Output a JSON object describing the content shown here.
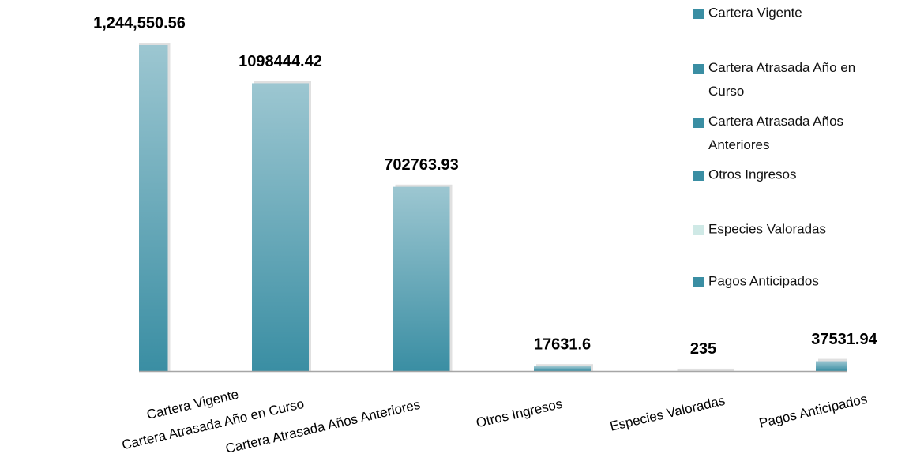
{
  "chart_data": {
    "type": "bar",
    "categories": [
      "Cartera Vigente",
      "Cartera Atrasada Año en Curso",
      "Cartera Atrasada Años Anteriores",
      "Otros Ingresos",
      "Especies Valoradas",
      "Pagos Anticipados"
    ],
    "values": [
      1244550.56,
      1098444.42,
      702763.93,
      17631.6,
      235,
      37531.94
    ],
    "value_labels": [
      "1,244,550.56",
      "1098444.42",
      "702763.93",
      "17631.6",
      "235",
      "37531.94"
    ],
    "colors": [
      "#3a8ea3",
      "#3a8ea3",
      "#3a8ea3",
      "#3a8ea3",
      "#cfe9e6",
      "#3a8ea3"
    ],
    "ylim": [
      0,
      1400000
    ]
  }
}
